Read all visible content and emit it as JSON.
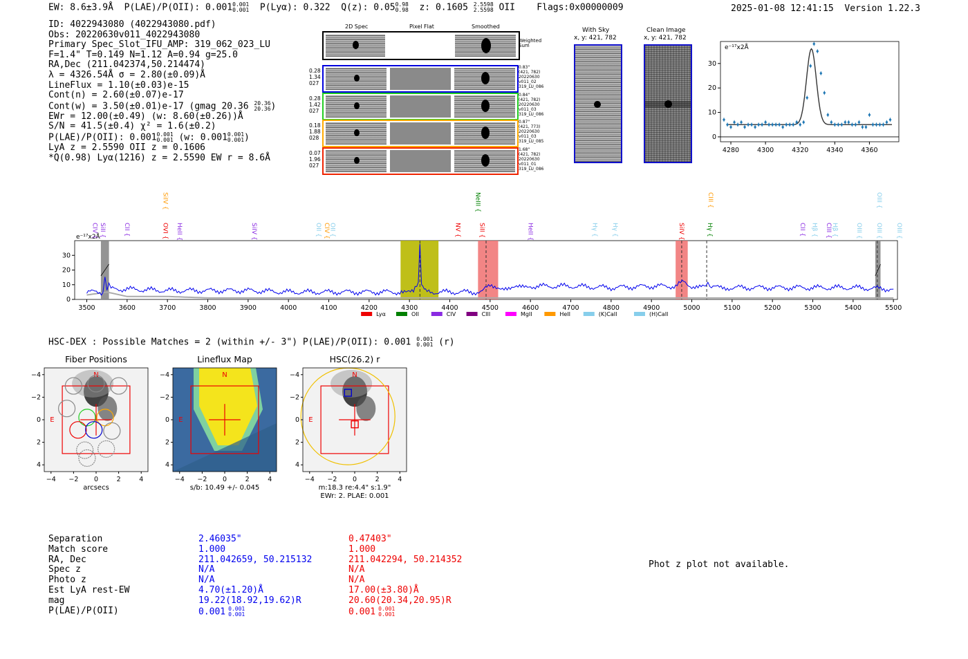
{
  "header": {
    "ew": "EW: 8.6±3.9Å",
    "plae_label": "P(LAE)/P(OII): 0.001",
    "plae_sup": "0.001",
    "plae_sub": "0.001",
    "plya": "P(Lyα): 0.322",
    "qz_label": "Q(z): 0.05",
    "qz_sup": "0.98",
    "qz_sub": "0.98",
    "z_label": "z: 0.1605",
    "z_sup": "2.5598",
    "z_sub": "2.5598",
    "z_line": "OII",
    "flags": "Flags:0x00000009",
    "datetime": "2025-01-08 12:41:15",
    "version": "Version 1.22.3"
  },
  "info": {
    "id": "ID: 4022943080 (4022943080.pdf)",
    "obs": "Obs: 20220630v011_4022943080",
    "primary": "Primary Spec_Slot_IFU_AMP: 319_062_023_LU",
    "fiber": "F=1.4\"  T=0.149  N=1.12  A=0.94  g=25.0",
    "radec": "RA,Dec (211.042374,50.214474)",
    "lambda": "λ = 4326.54Å  σ = 2.80(±0.09)Å",
    "lineflux": "LineFlux = 1.10(±0.03)e-15",
    "contn": "Cont(n) = 2.60(±0.07)e-17",
    "contw": "Cont(w) = 3.50(±0.01)e-17 (gmag 20.36",
    "contw_sup": "20.36",
    "contw_sub": "20.36",
    "contw_end": ")",
    "ewr": "EWr = 12.00(±0.49) (w: 8.60(±0.26))Å",
    "sn": "S/N = 41.5(±0.4)  χ² = 1.6(±0.2)",
    "plae": "P(LAE)/P(OII): 0.001",
    "plae_sup": "0.001",
    "plae_sub": "0.001",
    "plae_w": "(w: 0.001",
    "plae_w_sup": "0.001",
    "plae_w_sub": "0.001",
    "plae_w_end": ")",
    "lyaz": "LyA z = 2.5590  OII z = 0.1606",
    "qline": "*Q(0.98) Lyα(1216) z = 2.5590  EW r = 8.6Å"
  },
  "cutouts": {
    "col_titles": [
      "2D Spec",
      "Pixel Flat",
      "Smoothed"
    ],
    "weighted_sum": "Weighted Sum",
    "rows": [
      {
        "left": [
          "0.28",
          "1.34",
          "027"
        ],
        "right": [
          "0.83\"",
          "(421, 782)",
          "20220630",
          "v011_02",
          "319_LU_086"
        ],
        "color": "#0000dd"
      },
      {
        "left": [
          "0.28",
          "1.42",
          "027"
        ],
        "right": [
          "0.84\"",
          "(421, 782)",
          "20220630",
          "v011_03",
          "319_LU_086"
        ],
        "color": "#22cc22"
      },
      {
        "left": [
          "0.18",
          "1.88",
          "028"
        ],
        "right": [
          "0.87\"",
          "(421, 773)",
          "20220630",
          "v011_03",
          "319_LU_085"
        ],
        "color": "#ffaa00"
      },
      {
        "left": [
          "0.07",
          "1.96",
          "027"
        ],
        "right": [
          "1.68\"",
          "(421, 782)",
          "20220630",
          "v011_01",
          "319_LU_086"
        ],
        "color": "#ee2200"
      }
    ],
    "with_sky_title": "With Sky",
    "with_sky_xy": "x, y: 421, 782",
    "clean_title": "Clean Image",
    "clean_xy": "x, y: 421, 782"
  },
  "zoom_chart": {
    "unit_label": "e⁻¹⁷x2Å"
  },
  "chart_data": [
    {
      "type": "scatter",
      "title": "",
      "ylabel": "e-17x2Å",
      "xlim": [
        4274,
        4377
      ],
      "ylim": [
        -2,
        39
      ],
      "xticks": [
        4280,
        4300,
        4320,
        4340,
        4360
      ],
      "yticks": [
        0,
        10,
        20,
        30
      ],
      "points_x": [
        4276,
        4278,
        4280,
        4282,
        4284,
        4286,
        4288,
        4290,
        4292,
        4294,
        4296,
        4298,
        4300,
        4302,
        4304,
        4306,
        4308,
        4310,
        4312,
        4314,
        4316,
        4318,
        4320,
        4322,
        4324,
        4326,
        4328,
        4330,
        4332,
        4334,
        4336,
        4338,
        4340,
        4342,
        4344,
        4346,
        4348,
        4350,
        4352,
        4354,
        4356,
        4358,
        4360,
        4362,
        4364,
        4366,
        4368,
        4370,
        4372
      ],
      "points_y": [
        7,
        5,
        4,
        6,
        5,
        6,
        4,
        5,
        5,
        4,
        5,
        5,
        6,
        5,
        5,
        5,
        5,
        4,
        5,
        5,
        5,
        6,
        5,
        6,
        16,
        29,
        38,
        35,
        26,
        18,
        9,
        6,
        5,
        5,
        5,
        6,
        6,
        5,
        5,
        6,
        4,
        4,
        9,
        5,
        5,
        5,
        5,
        6,
        7
      ],
      "fit": {
        "mu": 4326.5,
        "sigma": 2.8,
        "amp": 31,
        "base": 5
      }
    },
    {
      "type": "line",
      "title": "",
      "ylabel": "e-17x2Å",
      "unit_label": "e⁻¹⁷x2Å",
      "xlim": [
        3470,
        5510
      ],
      "ylim": [
        0,
        40
      ],
      "xticks": [
        3500,
        3600,
        3700,
        3800,
        3900,
        4000,
        4100,
        4200,
        4300,
        4400,
        4500,
        4600,
        4700,
        4800,
        4900,
        5000,
        5100,
        5200,
        5300,
        5400,
        5500
      ],
      "yticks": [
        0,
        10,
        20,
        30
      ],
      "series": [
        {
          "name": "spectrum",
          "color": "#0000ee",
          "x": [
            3500,
            3540,
            3545,
            3550,
            3555,
            3560,
            3600,
            3700,
            3800,
            3900,
            4000,
            4100,
            4200,
            4280,
            4310,
            4322,
            4326,
            4330,
            4340,
            4400,
            4480,
            4500,
            4550,
            4600,
            4700,
            4800,
            4900,
            4960,
            4980,
            5000,
            5035,
            5040,
            5045,
            5100,
            5200,
            5300,
            5400,
            5500
          ],
          "y": [
            5,
            5,
            15,
            6,
            12,
            7,
            7,
            6,
            6,
            6,
            5,
            5,
            5,
            5,
            5,
            10,
            38,
            10,
            5,
            5,
            5,
            10,
            7,
            9,
            9,
            8,
            9,
            9,
            12,
            9,
            8,
            13,
            8,
            8,
            8,
            8,
            8,
            7
          ]
        },
        {
          "name": "sky",
          "color": "#aaaaaa",
          "x": [
            3500,
            3550,
            3600,
            3700,
            3800,
            4000,
            4300,
            4600,
            5000,
            5500
          ],
          "y": [
            3,
            5,
            2,
            2,
            1,
            1,
            1,
            1,
            1,
            1
          ]
        }
      ],
      "bands": [
        {
          "x0": 3535,
          "x1": 3555,
          "color": "gray"
        },
        {
          "x0": 4278,
          "x1": 4372,
          "color": "olive"
        },
        {
          "x0": 4470,
          "x1": 4520,
          "color": "red"
        },
        {
          "x0": 4960,
          "x1": 4990,
          "color": "red"
        },
        {
          "x0": 5455,
          "x1": 5468,
          "color": "gray"
        }
      ],
      "vlines": [
        4326,
        4490,
        4975,
        5037,
        5460
      ],
      "line_labels": [
        {
          "name": "CIV",
          "x": 3510,
          "row": "low",
          "color": "#8a2be2"
        },
        {
          "name": "SiII",
          "x": 3530,
          "row": "low",
          "color": "#8a2be2"
        },
        {
          "name": "CII",
          "x": 3590,
          "row": "low",
          "color": "#8a2be2"
        },
        {
          "name": "SiIV",
          "x": 3685,
          "row": "high",
          "color": "#ff9900"
        },
        {
          "name": "OVI",
          "x": 3685,
          "row": "low",
          "color": "#ee0000"
        },
        {
          "name": "HeII",
          "x": 3720,
          "row": "low",
          "color": "#8a2be2"
        },
        {
          "name": "SiIV",
          "x": 3905,
          "row": "low",
          "color": "#8a2be2"
        },
        {
          "name": "OII",
          "x": 4065,
          "row": "low",
          "color": "#87ceeb"
        },
        {
          "name": "CIV",
          "x": 4085,
          "row": "low",
          "color": "#ff9900"
        },
        {
          "name": "OII",
          "x": 4100,
          "row": "low",
          "color": "#87ceeb"
        },
        {
          "name": "NV",
          "x": 4410,
          "row": "low",
          "color": "#ee0000"
        },
        {
          "name": "NeIII",
          "x": 4460,
          "row": "high",
          "color": "#008000"
        },
        {
          "name": "SiII",
          "x": 4470,
          "row": "low",
          "color": "#ee0000"
        },
        {
          "name": "HeII",
          "x": 4590,
          "row": "low",
          "color": "#8a2be2"
        },
        {
          "name": "Hγ",
          "x": 4750,
          "row": "low",
          "color": "#87ceeb"
        },
        {
          "name": "Hγ",
          "x": 4800,
          "row": "low",
          "color": "#87ceeb"
        },
        {
          "name": "SiIV",
          "x": 4965,
          "row": "low",
          "color": "#ee0000"
        },
        {
          "name": "Hγ",
          "x": 5035,
          "row": "low",
          "color": "#008000"
        },
        {
          "name": "CIII",
          "x": 5037,
          "row": "high",
          "color": "#ff9900"
        },
        {
          "name": "CII",
          "x": 5265,
          "row": "low",
          "color": "#8a2be2"
        },
        {
          "name": "Hβ",
          "x": 5295,
          "row": "low",
          "color": "#87ceeb"
        },
        {
          "name": "CIII",
          "x": 5330,
          "row": "low",
          "color": "#8a2be2"
        },
        {
          "name": "Hβ",
          "x": 5345,
          "row": "low",
          "color": "#87ceeb"
        },
        {
          "name": "OIII",
          "x": 5405,
          "row": "low",
          "color": "#87ceeb"
        },
        {
          "name": "OIII",
          "x": 5455,
          "row": "high",
          "color": "#87ceeb"
        },
        {
          "name": "OIII",
          "x": 5455,
          "row": "low",
          "color": "#87ceeb"
        },
        {
          "name": "OIII",
          "x": 5505,
          "row": "low",
          "color": "#87ceeb"
        }
      ],
      "legend": [
        {
          "label": "Lyα",
          "color": "#ee0000"
        },
        {
          "label": "OII",
          "color": "#008000"
        },
        {
          "label": "CIV",
          "color": "#8a2be2"
        },
        {
          "label": "CIII",
          "color": "#800080"
        },
        {
          "label": "MgII",
          "color": "#ff00ff"
        },
        {
          "label": "HeII",
          "color": "#ff9900"
        },
        {
          "label": "(K)CaII",
          "color": "#87ceeb"
        },
        {
          "label": "(H)CaII",
          "color": "#87ceeb"
        }
      ]
    }
  ],
  "hsc": {
    "line": "HSC-DEX : Possible Matches = 2 (within +/- 3\")  P(LAE)/P(OII): 0.001",
    "sup": "0.001",
    "sub": "0.001",
    "band": "(r)"
  },
  "panels": {
    "fiber_title": "Fiber Positions",
    "flux_title": "Lineflux Map",
    "hsc_title": "HSC(26.2) r",
    "ticks": [
      "−4",
      "−2",
      "0",
      "2",
      "4"
    ],
    "yticks": [
      "4",
      "2",
      "0",
      "−2",
      "−4"
    ],
    "fiber_xlabel": "arcsecs",
    "flux_xlabel": "s/b: 10.49 +/- 0.045",
    "hsc_xlabel1": "m:18.3  re:4.4\"  s:1.9\"",
    "hsc_xlabel2": "EWr: 2. PLAE: 0.001",
    "north": "N",
    "east": "E"
  },
  "matches": {
    "labels": [
      "Separation",
      "Match score",
      "RA, Dec",
      "Spec z",
      "Photo z",
      "Est LyA rest-EW",
      "mag",
      "P(LAE)/P(OII)"
    ],
    "col1": [
      "2.46035\"",
      "1.000",
      "211.042659, 50.215132",
      "N/A",
      "N/A",
      "4.70(±1.20)Å",
      "19.22(18.92,19.62)R",
      "0.001"
    ],
    "col1_sup": "0.001",
    "col1_sub": "0.001",
    "col2": [
      "0.47403\"",
      "1.000",
      "211.042294, 50.214352",
      "N/A",
      "N/A",
      "17.00(±3.80)Å",
      "20.60(20.34,20.95)R",
      "0.001"
    ],
    "col2_sup": "0.001",
    "col2_sub": "0.001"
  },
  "photz": "Phot z plot not available."
}
